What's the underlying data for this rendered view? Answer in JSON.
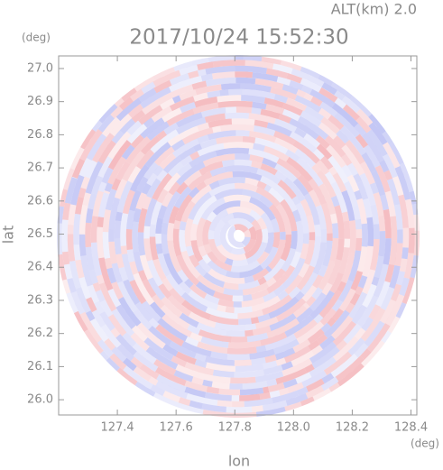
{
  "chart_data": {
    "type": "ppi",
    "title": "2017/10/24 15:52:30",
    "altitude_label": "ALT(km) 2.0",
    "x_label": "lon",
    "x_unit": "(deg)",
    "y_label": "lat",
    "y_unit": "(deg)",
    "xlim": [
      127.2,
      128.42
    ],
    "ylim": [
      25.954,
      27.038
    ],
    "xticks": [
      127.4,
      127.6,
      127.8,
      {
        "value": 128,
        "label": "128.0"
      },
      128.2,
      128.4
    ],
    "yticks": [
      {
        "value": 26,
        "label": "26.0"
      },
      26.1,
      26.2,
      26.3,
      26.4,
      26.5,
      26.6,
      26.7,
      26.8,
      26.9,
      {
        "value": 27,
        "label": "27.0"
      }
    ]
  }
}
